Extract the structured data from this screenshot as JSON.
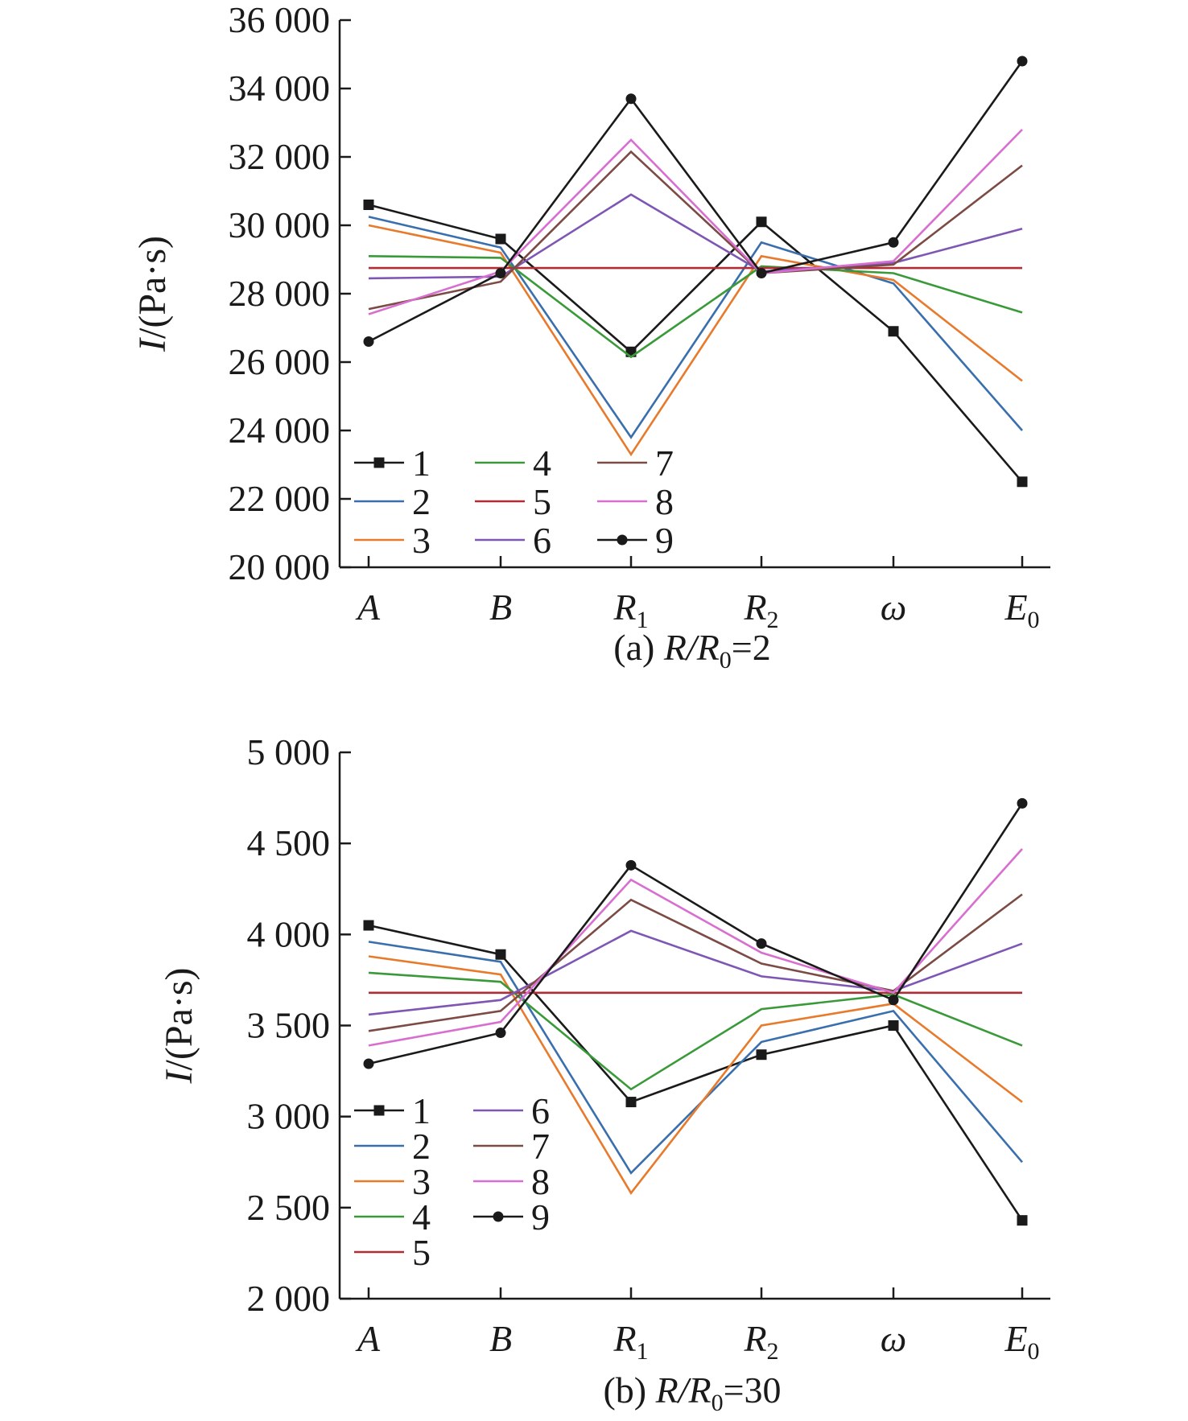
{
  "chart_data": [
    {
      "type": "line",
      "panel_id": "a",
      "caption": {
        "prefix": "(a) ",
        "ratio_sym": "R/R",
        "ratio_sub": "0",
        "ratio_val": "=2"
      },
      "ylabel": {
        "sym": "I",
        "unit": "/(Pa·s)"
      },
      "ylim": [
        20000,
        36000
      ],
      "yticks": [
        {
          "value": 20000,
          "label": "20 000"
        },
        {
          "value": 22000,
          "label": "22 000"
        },
        {
          "value": 24000,
          "label": "24 000"
        },
        {
          "value": 26000,
          "label": "26 000"
        },
        {
          "value": 28000,
          "label": "28 000"
        },
        {
          "value": 30000,
          "label": "30 000"
        },
        {
          "value": 32000,
          "label": "32 000"
        },
        {
          "value": 34000,
          "label": "34 000"
        },
        {
          "value": 36000,
          "label": "36 000"
        }
      ],
      "categories": [
        {
          "base": "A",
          "sub": ""
        },
        {
          "base": "B",
          "sub": ""
        },
        {
          "base": "R",
          "sub": "1"
        },
        {
          "base": "R",
          "sub": "2"
        },
        {
          "base": "ω",
          "sub": ""
        },
        {
          "base": "E",
          "sub": "0"
        }
      ],
      "grid": false,
      "legend": {
        "placement": "bottom-left",
        "columns": [
          [
            "1",
            "2",
            "3"
          ],
          [
            "4",
            "5",
            "6"
          ],
          [
            "7",
            "8",
            "9"
          ]
        ]
      },
      "series": [
        {
          "name": "1",
          "color": "#1a1a1a",
          "marker": "square",
          "values": [
            30600,
            29600,
            26300,
            30100,
            26900,
            22500
          ]
        },
        {
          "name": "2",
          "color": "#3a6fad",
          "marker": "none",
          "values": [
            30250,
            29350,
            23800,
            29500,
            28300,
            24000
          ]
        },
        {
          "name": "3",
          "color": "#e87a2c",
          "marker": "none",
          "values": [
            30000,
            29200,
            23300,
            29100,
            28400,
            25450
          ]
        },
        {
          "name": "4",
          "color": "#3a9a3a",
          "marker": "none",
          "values": [
            29100,
            29050,
            26150,
            28800,
            28600,
            27450
          ]
        },
        {
          "name": "5",
          "color": "#b02d35",
          "marker": "none",
          "values": [
            28750,
            28750,
            28750,
            28750,
            28750,
            28750
          ]
        },
        {
          "name": "6",
          "color": "#7e56b4",
          "marker": "none",
          "values": [
            28450,
            28500,
            30900,
            28650,
            28900,
            29900
          ]
        },
        {
          "name": "7",
          "color": "#7d4b45",
          "marker": "none",
          "values": [
            27550,
            28350,
            32150,
            28600,
            28850,
            31750
          ]
        },
        {
          "name": "8",
          "color": "#d86fd0",
          "marker": "none",
          "values": [
            27400,
            28650,
            32500,
            28600,
            28950,
            32800
          ]
        },
        {
          "name": "9",
          "color": "#1a1a1a",
          "marker": "circle",
          "values": [
            26600,
            28600,
            33700,
            28600,
            29500,
            34800
          ]
        }
      ]
    },
    {
      "type": "line",
      "panel_id": "b",
      "caption": {
        "prefix": "(b) ",
        "ratio_sym": "R/R",
        "ratio_sub": "0",
        "ratio_val": "=30"
      },
      "ylabel": {
        "sym": "I",
        "unit": "/(Pa·s)"
      },
      "ylim": [
        2000,
        5000
      ],
      "yticks": [
        {
          "value": 2000,
          "label": "2 000"
        },
        {
          "value": 2500,
          "label": "2 500"
        },
        {
          "value": 3000,
          "label": "3 000"
        },
        {
          "value": 3500,
          "label": "3 500"
        },
        {
          "value": 4000,
          "label": "4 000"
        },
        {
          "value": 4500,
          "label": "4 500"
        },
        {
          "value": 5000,
          "label": "5 000"
        }
      ],
      "categories": [
        {
          "base": "A",
          "sub": ""
        },
        {
          "base": "B",
          "sub": ""
        },
        {
          "base": "R",
          "sub": "1"
        },
        {
          "base": "R",
          "sub": "2"
        },
        {
          "base": "ω",
          "sub": ""
        },
        {
          "base": "E",
          "sub": "0"
        }
      ],
      "grid": false,
      "legend": {
        "placement": "bottom-left",
        "columns": [
          [
            "1",
            "2",
            "3",
            "4",
            "5"
          ],
          [
            "6",
            "7",
            "8",
            "9"
          ]
        ]
      },
      "series": [
        {
          "name": "1",
          "color": "#1a1a1a",
          "marker": "square",
          "values": [
            4050,
            3890,
            3080,
            3340,
            3500,
            2430
          ]
        },
        {
          "name": "2",
          "color": "#3a6fad",
          "marker": "none",
          "values": [
            3960,
            3850,
            2690,
            3410,
            3580,
            2750
          ]
        },
        {
          "name": "3",
          "color": "#e87a2c",
          "marker": "none",
          "values": [
            3880,
            3780,
            2580,
            3500,
            3620,
            3080
          ]
        },
        {
          "name": "4",
          "color": "#3a9a3a",
          "marker": "none",
          "values": [
            3790,
            3740,
            3150,
            3590,
            3670,
            3390
          ]
        },
        {
          "name": "5",
          "color": "#b02d35",
          "marker": "none",
          "values": [
            3680,
            3680,
            3680,
            3680,
            3680,
            3680
          ]
        },
        {
          "name": "6",
          "color": "#7e56b4",
          "marker": "none",
          "values": [
            3560,
            3640,
            4020,
            3770,
            3690,
            3950
          ]
        },
        {
          "name": "7",
          "color": "#7d4b45",
          "marker": "none",
          "values": [
            3470,
            3580,
            4190,
            3840,
            3690,
            4220
          ]
        },
        {
          "name": "8",
          "color": "#d86fd0",
          "marker": "none",
          "values": [
            3390,
            3520,
            4300,
            3900,
            3680,
            4470
          ]
        },
        {
          "name": "9",
          "color": "#1a1a1a",
          "marker": "circle",
          "values": [
            3290,
            3460,
            4380,
            3950,
            3640,
            4720
          ]
        }
      ]
    }
  ]
}
